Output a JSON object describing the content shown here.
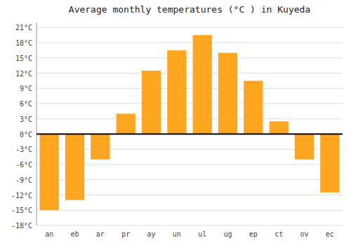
{
  "chart_data": {
    "type": "bar",
    "title": "Average monthly temperatures (°C ) in Kuyeda",
    "categories": [
      "an",
      "eb",
      "ar",
      "pr",
      "ay",
      "un",
      "ul",
      "ug",
      "ep",
      "ct",
      "ov",
      "ec"
    ],
    "values": [
      -15,
      -13,
      -5,
      4,
      12.5,
      16.5,
      19.5,
      16,
      10.5,
      2.5,
      -5,
      -11.5
    ],
    "color": "#FFA520",
    "ylim": [
      -18,
      22
    ],
    "yticks": [
      {
        "value": -18,
        "label": "-18°C"
      },
      {
        "value": -15,
        "label": "-15°C"
      },
      {
        "value": -12,
        "label": "-12°C"
      },
      {
        "value": -9,
        "label": "-9°C"
      },
      {
        "value": -6,
        "label": "-6°C"
      },
      {
        "value": -3,
        "label": "-3°C"
      },
      {
        "value": 0,
        "label": "0°C"
      },
      {
        "value": 3,
        "label": "3°C"
      },
      {
        "value": 6,
        "label": "6°C"
      },
      {
        "value": 9,
        "label": "9°C"
      },
      {
        "value": 12,
        "label": "12°C"
      },
      {
        "value": 15,
        "label": "15°C"
      },
      {
        "value": 18,
        "label": "18°C"
      },
      {
        "value": 21,
        "label": "21°C"
      }
    ],
    "grid": true
  }
}
